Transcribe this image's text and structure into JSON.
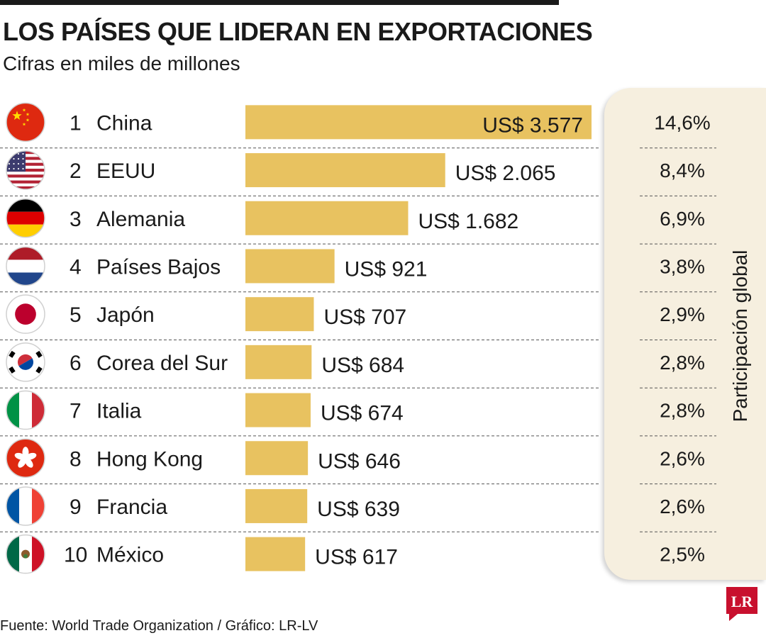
{
  "title": "LOS PAÍSES QUE LIDERAN EN EXPORTACIONES",
  "subtitle": "Cifras en miles de millones",
  "panel_label": "Participación global",
  "footer": "Fuente: World Trade Organization / Gráfico: LR-LV",
  "logo_text": "LR",
  "colors": {
    "bar": "#e8c260",
    "panel": "#f6efdf",
    "logo": "#c8102e",
    "text": "#1a1a1a"
  },
  "chart_data": {
    "type": "bar",
    "orientation": "horizontal",
    "categories": [
      "China",
      "EEUU",
      "Alemania",
      "Países Bajos",
      "Japón",
      "Corea del Sur",
      "Italia",
      "Hong Kong",
      "Francia",
      "México"
    ],
    "ranks": [
      "1",
      "2",
      "3",
      "4",
      "5",
      "6",
      "7",
      "8",
      "9",
      "10"
    ],
    "values": [
      3577,
      2065,
      1682,
      921,
      707,
      684,
      674,
      646,
      639,
      617
    ],
    "value_labels": [
      "US$ 3.577",
      "US$ 2.065",
      "US$ 1.682",
      "US$ 921",
      "US$ 707",
      "US$ 684",
      "US$ 674",
      "US$ 646",
      "US$ 639",
      "US$ 617"
    ],
    "share_labels": [
      "14,6%",
      "8,4%",
      "6,9%",
      "3,8%",
      "2,9%",
      "2,8%",
      "2,8%",
      "2,6%",
      "2,6%",
      "2,5%"
    ],
    "shares": [
      14.6,
      8.4,
      6.9,
      3.8,
      2.9,
      2.8,
      2.8,
      2.6,
      2.6,
      2.5
    ],
    "flags": [
      "china-flag-icon",
      "usa-flag-icon",
      "germany-flag-icon",
      "netherlands-flag-icon",
      "japan-flag-icon",
      "south-korea-flag-icon",
      "italy-flag-icon",
      "hong-kong-flag-icon",
      "france-flag-icon",
      "mexico-flag-icon"
    ],
    "grid": false
  }
}
